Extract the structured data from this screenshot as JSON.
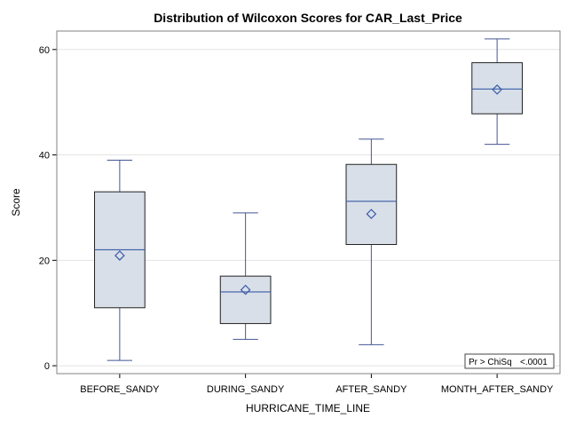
{
  "chart_data": {
    "type": "boxplot",
    "title": "Distribution of Wilcoxon Scores for CAR_Last_Price",
    "xlabel": "HURRICANE_TIME_LINE",
    "ylabel": "Score",
    "ylim": [
      -1.5,
      63.5
    ],
    "yticks": [
      0,
      20,
      40,
      60
    ],
    "grid": true,
    "categories": [
      "BEFORE_SANDY",
      "DURING_SANDY",
      "AFTER_SANDY",
      "MONTH_AFTER_SANDY"
    ],
    "boxes": [
      {
        "min": 1,
        "q1": 11,
        "median": 22,
        "q3": 33,
        "max": 39,
        "mean": 20.9
      },
      {
        "min": 5,
        "q1": 8,
        "median": 14,
        "q3": 17,
        "max": 29,
        "mean": 14.4
      },
      {
        "min": 4,
        "q1": 23,
        "median": 31.2,
        "q3": 38.2,
        "max": 43,
        "mean": 28.8
      },
      {
        "min": 42,
        "q1": 47.8,
        "median": 52.5,
        "q3": 57.5,
        "max": 62,
        "mean": 52.4
      }
    ],
    "inset": {
      "label": "Pr > ChiSq",
      "value": "<.0001"
    }
  }
}
